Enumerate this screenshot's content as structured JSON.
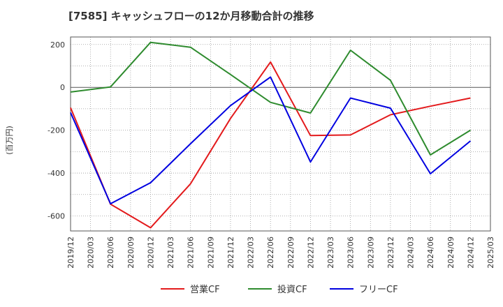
{
  "chart_data": {
    "type": "line",
    "title": "[7585]  キャッシュフローの12か月移動合計の推移",
    "ylabel": "(百万円)",
    "xlabel": "",
    "ylim": [
      -670,
      235
    ],
    "yticks": [
      200,
      0,
      -200,
      -400,
      -600
    ],
    "categories": [
      "2019/12",
      "2020/03",
      "2020/06",
      "2020/09",
      "2020/12",
      "2021/03",
      "2021/06",
      "2021/09",
      "2021/12",
      "2022/03",
      "2022/06",
      "2022/09",
      "2022/12",
      "2023/03",
      "2023/06",
      "2023/09",
      "2023/12",
      "2024/03",
      "2024/06",
      "2024/09",
      "2024/12",
      "2025/03"
    ],
    "grid": true,
    "legend_position": "bottom",
    "series": [
      {
        "name": "営業CF",
        "color": "#e31a1c",
        "points": [
          {
            "x": "2019/12",
            "y": -95
          },
          {
            "x": "2020/06",
            "y": -545
          },
          {
            "x": "2020/12",
            "y": -655
          },
          {
            "x": "2021/06",
            "y": -450
          },
          {
            "x": "2021/12",
            "y": -145
          },
          {
            "x": "2022/06",
            "y": 118
          },
          {
            "x": "2022/12",
            "y": -225
          },
          {
            "x": "2023/06",
            "y": -222
          },
          {
            "x": "2023/12",
            "y": -128
          },
          {
            "x": "2024/06",
            "y": -88
          },
          {
            "x": "2024/12",
            "y": -50
          }
        ]
      },
      {
        "name": "投資CF",
        "color": "#2e8b2e",
        "points": [
          {
            "x": "2019/12",
            "y": -22
          },
          {
            "x": "2020/06",
            "y": 2
          },
          {
            "x": "2020/12",
            "y": 210
          },
          {
            "x": "2021/06",
            "y": 187
          },
          {
            "x": "2021/12",
            "y": 60
          },
          {
            "x": "2022/06",
            "y": -70
          },
          {
            "x": "2022/12",
            "y": -120
          },
          {
            "x": "2023/06",
            "y": 173
          },
          {
            "x": "2023/12",
            "y": 33
          },
          {
            "x": "2024/06",
            "y": -315
          },
          {
            "x": "2024/12",
            "y": -200
          }
        ]
      },
      {
        "name": "フリーCF",
        "color": "#0000e0",
        "points": [
          {
            "x": "2019/12",
            "y": -118
          },
          {
            "x": "2020/06",
            "y": -543
          },
          {
            "x": "2020/12",
            "y": -445
          },
          {
            "x": "2021/06",
            "y": -263
          },
          {
            "x": "2021/12",
            "y": -85
          },
          {
            "x": "2022/06",
            "y": 48
          },
          {
            "x": "2022/12",
            "y": -348
          },
          {
            "x": "2023/06",
            "y": -50
          },
          {
            "x": "2023/12",
            "y": -97
          },
          {
            "x": "2024/06",
            "y": -403
          },
          {
            "x": "2024/12",
            "y": -250
          }
        ]
      }
    ]
  }
}
